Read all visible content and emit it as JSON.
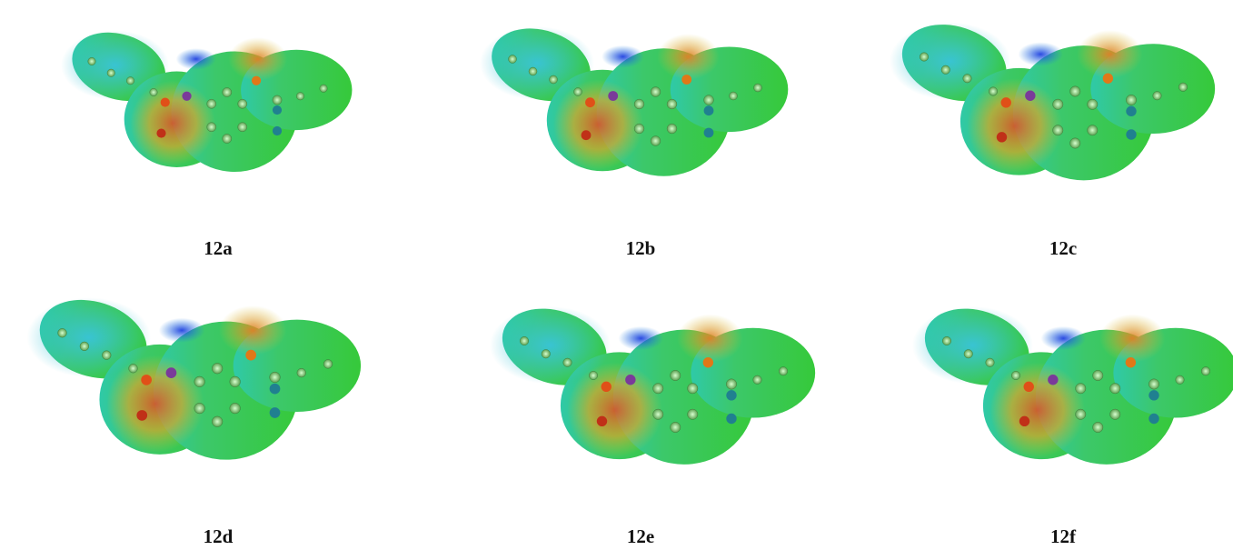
{
  "panels": [
    {
      "label": "12a"
    },
    {
      "label": "12b"
    },
    {
      "label": "12c"
    },
    {
      "label": "12d"
    },
    {
      "label": "12e"
    },
    {
      "label": "12f"
    }
  ]
}
